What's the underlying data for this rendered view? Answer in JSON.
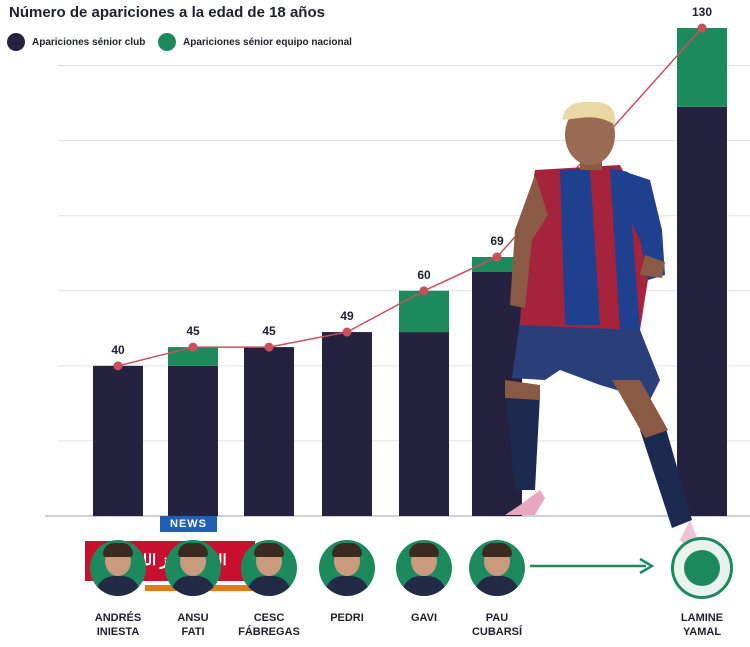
{
  "chart_data": {
    "type": "bar",
    "stacked": true,
    "title": "Número de apariciones a la edad de 18 años",
    "categories": [
      "ANDRÉS INIESTA",
      "ANSU FATI",
      "CESC FÁBREGAS",
      "PEDRI",
      "GAVI",
      "PAU CUBARSÍ",
      "LAMINE YAMAL"
    ],
    "series": [
      {
        "name": "Apariciones sénior club",
        "color": "#25223f",
        "values": [
          40,
          40,
          45,
          49,
          49,
          65,
          109
        ]
      },
      {
        "name": "Apariciones sénior equipo nacional",
        "color": "#1d8a5e",
        "values": [
          0,
          5,
          0,
          0,
          11,
          4,
          21
        ]
      }
    ],
    "totals": [
      40,
      45,
      45,
      49,
      60,
      69,
      130
    ],
    "total_labels": [
      "40",
      "45",
      "45",
      "49",
      "60",
      "69",
      "130"
    ],
    "ylim": [
      0,
      130
    ],
    "grid": true,
    "legend": "top-left",
    "line_color": "#c9505a"
  },
  "watermark": {
    "badge": "NEWS",
    "text": "العرب نيوز اللندنية"
  },
  "icons": {
    "player_photo": "footballer-photo",
    "arrow": "arrow-right-icon"
  }
}
